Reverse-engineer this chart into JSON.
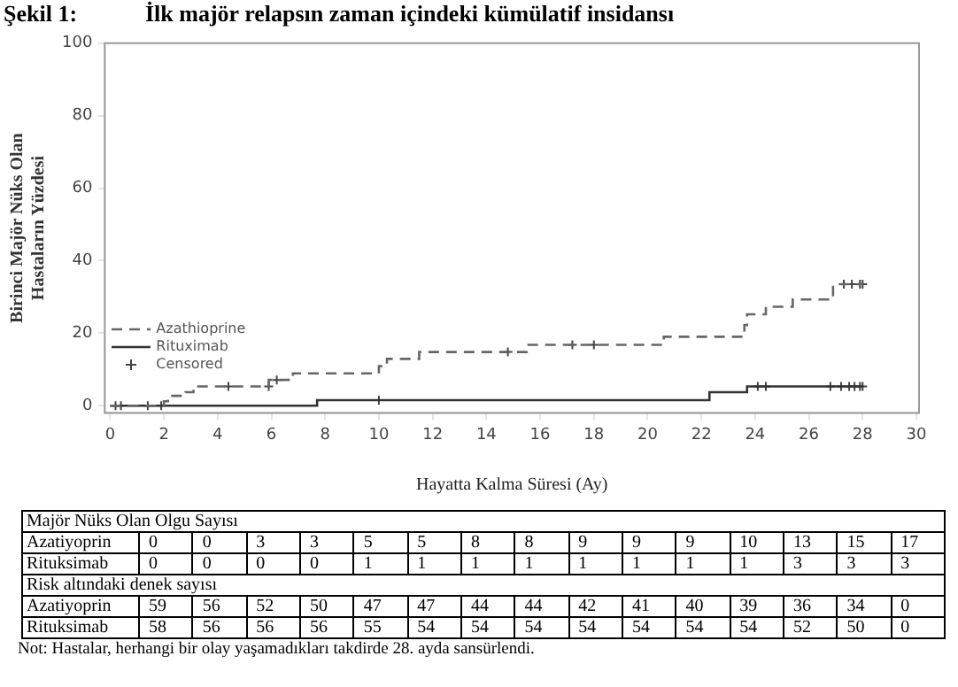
{
  "chart_data": {
    "type": "step",
    "title": "İlk majör relapsın zaman içindeki kümülatif insidansı",
    "xlabel": "Hayatta Kalma Süresi (Ay)",
    "ylabel": "Birinci Majör Nüks Olan\nHastaların Yüzdesi",
    "xlim": [
      -0.2,
      30.1
    ],
    "xticks": [
      0,
      2,
      4,
      6,
      8,
      10,
      12,
      14,
      16,
      18,
      20,
      22,
      24,
      26,
      28,
      30
    ],
    "ylim": [
      -2,
      100
    ],
    "yticks": [
      0,
      20,
      40,
      60,
      80,
      100
    ],
    "grid": false,
    "legend": "bottom left",
    "series": [
      {
        "name": "Azathioprine",
        "color": "#666666",
        "line_style": "dashed",
        "x": [
          0,
          2.0,
          2.15,
          2.8,
          3.1,
          5.9,
          6.8,
          10.0,
          10.3,
          11.5,
          15.5,
          20.6,
          23.6,
          23.7,
          24.4,
          25.4,
          26.9,
          28.0
        ],
        "values": [
          0,
          1.2,
          2.7,
          3.7,
          5.3,
          7.1,
          8.9,
          10.9,
          12.9,
          14.8,
          16.8,
          19.0,
          22.2,
          25.2,
          27.3,
          29.3,
          33.5,
          33.5
        ]
      },
      {
        "name": "Rituximab",
        "color": "#333333",
        "line_style": "solid",
        "x": [
          0,
          7.7,
          22.3,
          23.7,
          28.0
        ],
        "values": [
          0,
          1.5,
          3.7,
          5.3,
          5.3
        ]
      },
      {
        "name": "Censored",
        "type": "scatter",
        "marker": "cross",
        "color": "#444444",
        "x": [
          0.2,
          0.4,
          1.4,
          1.9,
          4.4,
          5.9,
          6.2,
          14.8,
          17.2,
          18.0,
          10.0,
          24.1,
          24.4,
          26.8,
          27.2,
          27.5,
          27.7,
          27.9,
          28.0,
          27.3,
          27.6,
          27.9,
          28.0
        ],
        "values": [
          0,
          0,
          0,
          0,
          5.3,
          5.3,
          7.1,
          14.8,
          16.8,
          16.8,
          1.5,
          5.3,
          5.3,
          5.3,
          5.3,
          5.3,
          5.3,
          5.3,
          5.3,
          33.5,
          33.5,
          33.5,
          33.5
        ]
      }
    ],
    "annotations": [
      "Şekil 1:",
      "Majör Nüks Olan Olgu Sayısı",
      "Azatiyoprin 0 0 3 3 5 5 8 8 9 9 9 10 13 15 17",
      "Rituksimab 0 0 0 0 1 1 1 1 1 1 1 1 3 3 3",
      "Risk altındaki denek sayısı",
      "Azatiyoprin 59 56 52 50 47 47 44 44 42 41 40 39 36 34 0",
      "Rituksimab 58 56 56 56 55 54 54 54 54 54 54 54 52 50 0",
      "Not:  Hastalar, herhangi bir olay yaşamadıkları takdirde 28. ayda sansürlendi."
    ]
  }
}
